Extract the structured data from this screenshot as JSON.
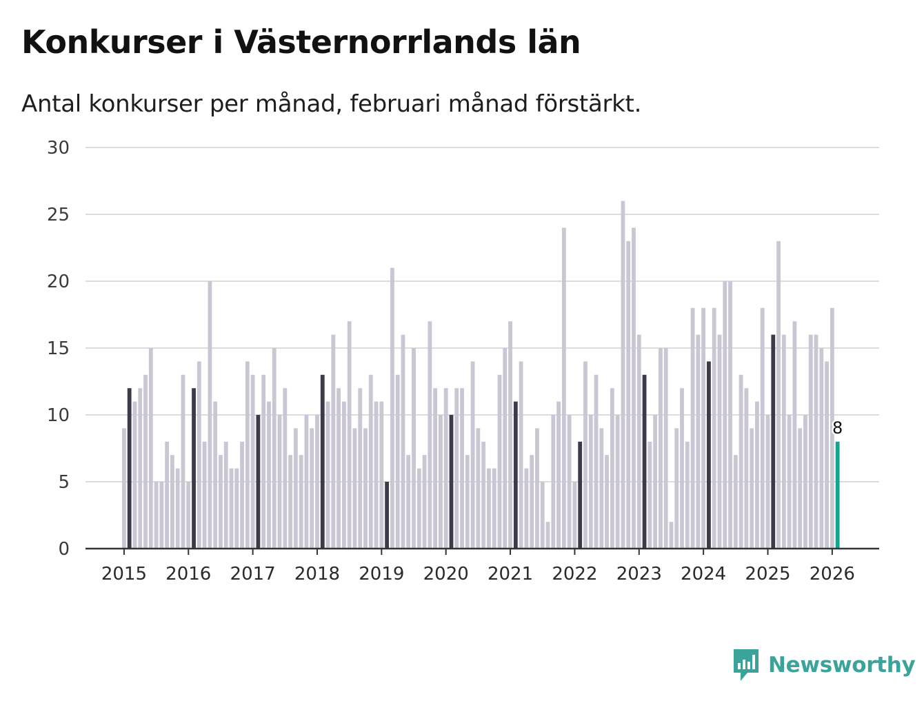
{
  "title": "Konkurser i Västernorrlands län",
  "subtitle": "Antal konkurser per månad, februari månad förstärkt.",
  "brand": {
    "name": "Newsworthy",
    "color": "#3aa39a"
  },
  "colors": {
    "bar": "#c8c7d3",
    "february": "#3c3b4b",
    "latest": "#16a390",
    "grid": "#dcdcdc",
    "axis": "#333333"
  },
  "chart_data": {
    "type": "bar",
    "start": "2015-01",
    "ylim": [
      0,
      30
    ],
    "yticks": [
      0,
      5,
      10,
      15,
      20,
      25,
      30
    ],
    "xticks": [
      "2015",
      "2016",
      "2017",
      "2018",
      "2019",
      "2020",
      "2021",
      "2022",
      "2023",
      "2024",
      "2025",
      "2026"
    ],
    "highlight": "februari",
    "values": [
      9,
      12,
      11,
      12,
      13,
      15,
      5,
      5,
      8,
      7,
      6,
      13,
      5,
      12,
      14,
      8,
      20,
      11,
      7,
      8,
      6,
      6,
      8,
      14,
      13,
      10,
      13,
      11,
      15,
      10,
      12,
      7,
      9,
      7,
      10,
      9,
      10,
      13,
      11,
      16,
      12,
      11,
      17,
      9,
      12,
      9,
      13,
      11,
      11,
      5,
      21,
      13,
      16,
      7,
      15,
      6,
      7,
      17,
      12,
      10,
      12,
      10,
      12,
      12,
      7,
      14,
      9,
      8,
      6,
      6,
      13,
      15,
      17,
      11,
      14,
      6,
      7,
      9,
      5,
      2,
      10,
      11,
      24,
      10,
      5,
      8,
      14,
      10,
      13,
      9,
      7,
      12,
      10,
      26,
      23,
      24,
      16,
      13,
      8,
      10,
      15,
      15,
      2,
      9,
      12,
      8,
      18,
      16,
      18,
      14,
      18,
      16,
      20,
      20,
      7,
      13,
      12,
      9,
      11,
      18,
      10,
      16,
      23,
      16,
      10,
      17,
      9,
      10,
      16,
      16,
      15,
      14,
      18,
      8
    ],
    "last_value_label": "8"
  }
}
